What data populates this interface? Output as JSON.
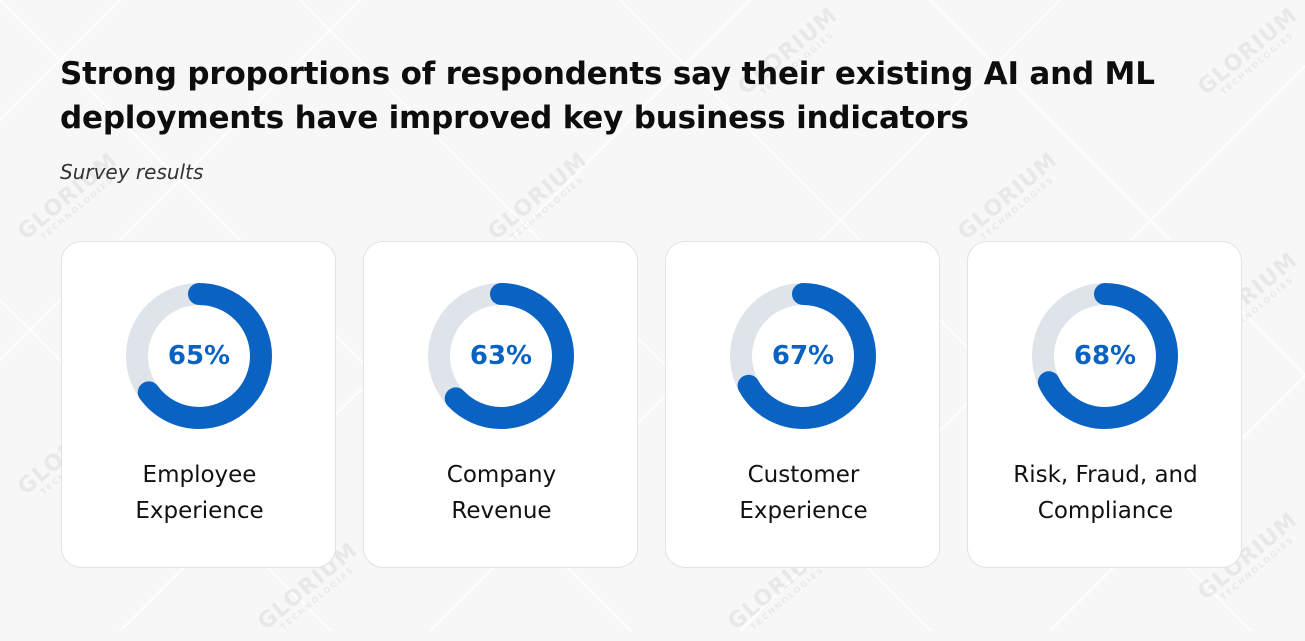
{
  "header": {
    "title": "Strong proportions of respondents say their existing AI and ML deployments have improved key business indicators",
    "subtitle": "Survey results"
  },
  "watermark": {
    "brand": "GLORIUM",
    "tagline": "TECHNOLOGIES"
  },
  "colors": {
    "accent": "#0a63c2",
    "track": "#dfe3ea",
    "card_bg": "#ffffff",
    "page_bg": "#f7f7f8"
  },
  "cards": [
    {
      "value": 65,
      "value_label": "65%",
      "label_line1": "Employee",
      "label_line2": "Experience"
    },
    {
      "value": 63,
      "value_label": "63%",
      "label_line1": "Company",
      "label_line2": "Revenue"
    },
    {
      "value": 67,
      "value_label": "67%",
      "label_line1": "Customer",
      "label_line2": "Experience"
    },
    {
      "value": 68,
      "value_label": "68%",
      "label_line1": "Risk, Fraud, and",
      "label_line2": "Compliance"
    }
  ],
  "chart_data": {
    "type": "pie",
    "subtype": "donut-progress",
    "title": "Strong proportions of respondents say their existing AI and ML deployments have improved key business indicators",
    "subtitle": "Survey results",
    "categories": [
      "Employee Experience",
      "Company Revenue",
      "Customer Experience",
      "Risk, Fraud, and Compliance"
    ],
    "values": [
      65,
      63,
      67,
      68
    ],
    "unit": "%",
    "max": 100
  }
}
